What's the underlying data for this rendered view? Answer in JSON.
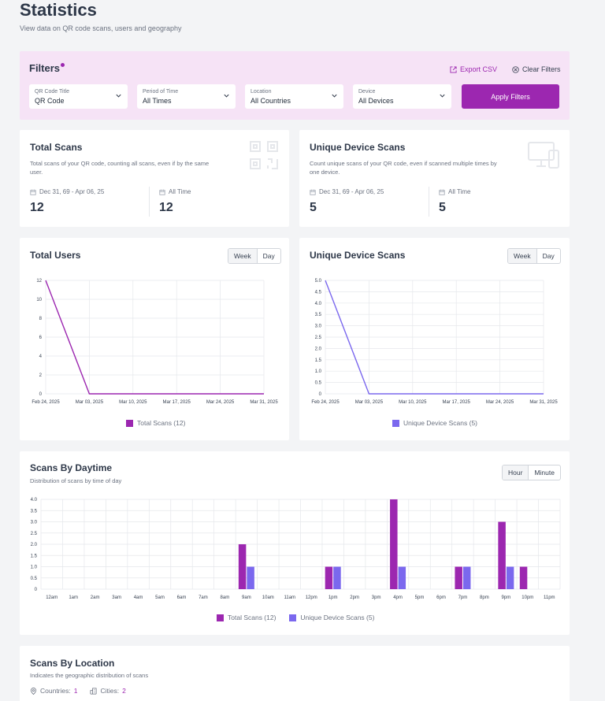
{
  "header": {
    "title": "Statistics",
    "subtitle": "View data on QR code scans, users and geography"
  },
  "filters": {
    "title": "Filters",
    "export_label": "Export CSV",
    "clear_label": "Clear Filters",
    "apply_label": "Apply Filters",
    "selects": [
      {
        "label": "QR Code Title",
        "value": "QR Code"
      },
      {
        "label": "Period of Time",
        "value": "All Times"
      },
      {
        "label": "Location",
        "value": "All Countries"
      },
      {
        "label": "Device",
        "value": "All Devices"
      }
    ]
  },
  "total_scans_card": {
    "title": "Total Scans",
    "description": "Total scans of your QR code, counting all scans, even if by the same user.",
    "range_label": "Dec 31, 69 - Apr 06, 25",
    "range_value": "12",
    "all_time_label": "All Time",
    "all_time_value": "12"
  },
  "unique_scans_card": {
    "title": "Unique Device Scans",
    "description": "Count unique scans of your QR code, even if scanned multiple times by one device.",
    "range_label": "Dec 31, 69 - Apr 06, 25",
    "range_value": "5",
    "all_time_label": "All Time",
    "all_time_value": "5"
  },
  "toggles": {
    "week": "Week",
    "day": "Day",
    "hour": "Hour",
    "minute": "Minute"
  },
  "daytime": {
    "title": "Scans By Daytime",
    "subtitle": "Distribution of scans by time of day"
  },
  "location": {
    "title": "Scans By Location",
    "subtitle": "Indicates the geographic distribution of scans",
    "countries_label": "Countries:",
    "countries_value": "1",
    "cities_label": "Cities:",
    "cities_value": "2"
  },
  "colors": {
    "accent": "#9c27b0",
    "unique": "#7b68ee",
    "filters_bg": "#f6e3f6"
  },
  "chart_data": [
    {
      "type": "line",
      "title": "Total Users",
      "x": [
        "Feb 24, 2025",
        "Mar 03, 2025",
        "Mar 10, 2025",
        "Mar 17, 2025",
        "Mar 24, 2025",
        "Mar 31, 2025"
      ],
      "series": [
        {
          "name": "Total Scans (12)",
          "values": [
            12,
            0,
            0,
            0,
            0,
            0
          ],
          "color": "#9c27b0"
        }
      ],
      "ylim": [
        0,
        12
      ],
      "yticks": [
        "0",
        "2",
        "4",
        "6",
        "8",
        "10",
        "12"
      ],
      "grid": true,
      "legend": "bottom"
    },
    {
      "type": "line",
      "title": "Unique Device Scans",
      "x": [
        "Feb 24, 2025",
        "Mar 03, 2025",
        "Mar 10, 2025",
        "Mar 17, 2025",
        "Mar 24, 2025",
        "Mar 31, 2025"
      ],
      "series": [
        {
          "name": "Unique Device Scans (5)",
          "values": [
            5,
            0,
            0,
            0,
            0,
            0
          ],
          "color": "#7b68ee"
        }
      ],
      "ylim": [
        0,
        5
      ],
      "yticks": [
        "0",
        "0.5",
        "1.0",
        "1.5",
        "2.0",
        "2.5",
        "3.0",
        "3.5",
        "4.0",
        "4.5",
        "5.0"
      ],
      "grid": true,
      "legend": "bottom"
    },
    {
      "type": "bar",
      "title": "Scans By Daytime",
      "categories": [
        "12am",
        "1am",
        "2am",
        "3am",
        "4am",
        "5am",
        "6am",
        "7am",
        "8am",
        "9am",
        "10am",
        "11am",
        "12pm",
        "1pm",
        "2pm",
        "3pm",
        "4pm",
        "5pm",
        "6pm",
        "7pm",
        "8pm",
        "9pm",
        "10pm",
        "11pm"
      ],
      "series": [
        {
          "name": "Total Scans (12)",
          "color": "#9c27b0",
          "values": [
            0,
            0,
            0,
            0,
            0,
            0,
            0,
            0,
            0,
            2,
            0,
            0,
            0,
            1,
            0,
            0,
            4,
            0,
            0,
            1,
            0,
            3,
            1,
            0
          ]
        },
        {
          "name": "Unique Device Scans (5)",
          "color": "#7b68ee",
          "values": [
            0,
            0,
            0,
            0,
            0,
            0,
            0,
            0,
            0,
            1,
            0,
            0,
            0,
            1,
            0,
            0,
            1,
            0,
            0,
            1,
            0,
            1,
            0,
            0
          ]
        }
      ],
      "ylim": [
        0,
        4
      ],
      "yticks": [
        "0",
        "0.5",
        "1.0",
        "1.5",
        "2.0",
        "2.5",
        "3.0",
        "3.5",
        "4.0"
      ],
      "grid": true,
      "legend": "bottom"
    }
  ]
}
